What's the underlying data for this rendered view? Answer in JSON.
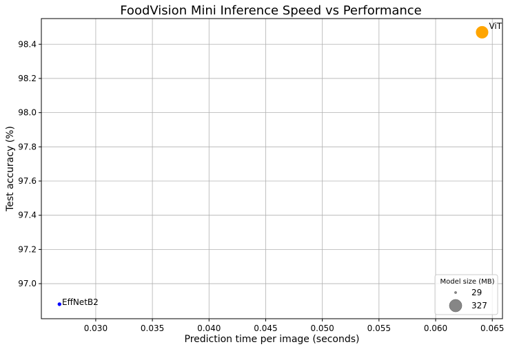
{
  "chart_data": {
    "type": "scatter",
    "title": "FoodVision Mini Inference Speed vs Performance",
    "xlabel": "Prediction time per image (seconds)",
    "ylabel": "Test accuracy (%)",
    "xlim": [
      0.0252,
      0.0659
    ],
    "ylim": [
      96.795,
      98.55
    ],
    "xticks": [
      0.03,
      0.035,
      0.04,
      0.045,
      0.05,
      0.055,
      0.06,
      0.065
    ],
    "xtick_labels": [
      "0.030",
      "0.035",
      "0.040",
      "0.045",
      "0.050",
      "0.055",
      "0.060",
      "0.065"
    ],
    "yticks": [
      97.0,
      97.2,
      97.4,
      97.6,
      97.8,
      98.0,
      98.2,
      98.4
    ],
    "ytick_labels": [
      "97.0",
      "97.2",
      "97.4",
      "97.6",
      "97.8",
      "98.0",
      "98.2",
      "98.4"
    ],
    "grid": true,
    "points": [
      {
        "label": "EffNetB2",
        "x": 0.0268,
        "y": 96.88,
        "size_mb": 29,
        "color": "#0000ff"
      },
      {
        "label": "ViT",
        "x": 0.0641,
        "y": 98.47,
        "size_mb": 327,
        "color": "#ffa500"
      }
    ],
    "legend": {
      "title": "Model size (MB)",
      "placement": "lower-right",
      "entries": [
        {
          "label": "29",
          "size_mb": 29
        },
        {
          "label": "327",
          "size_mb": 327
        }
      ],
      "marker_color": "#808080"
    }
  }
}
